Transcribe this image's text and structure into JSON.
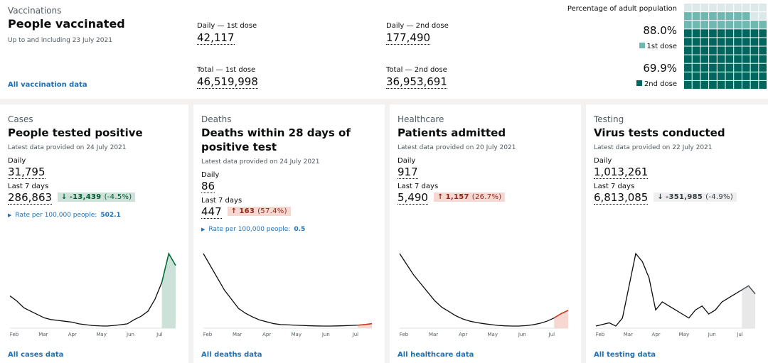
{
  "vaccinations": {
    "caption": "Vaccinations",
    "title": "People vaccinated",
    "subtitle": "Up to and including 23 July 2021",
    "link": "All vaccination data",
    "metrics": [
      {
        "label": "Daily — 1st dose",
        "value": "42,117"
      },
      {
        "label": "Total — 1st dose",
        "value": "46,519,998"
      },
      {
        "label": "Daily — 2nd dose",
        "value": "177,490"
      },
      {
        "label": "Total — 2nd dose",
        "value": "36,953,691"
      }
    ],
    "waffle": {
      "type": "waffle",
      "title": "Percentage of adult population",
      "empty_color": "#dde9e8",
      "series": [
        {
          "name": "1st dose",
          "color": "#6fb8b1",
          "value": 88.0,
          "value_label": "88.0%"
        },
        {
          "name": "2nd dose",
          "color": "#00665e",
          "value": 69.9,
          "value_label": "69.9%"
        }
      ]
    }
  },
  "cards": [
    {
      "caption": "Cases",
      "title": "People tested positive",
      "updated": "Latest data provided on 24 July 2021",
      "daily_label": "Daily",
      "daily": "31,795",
      "week_label": "Last 7 days",
      "week": "286,863",
      "change": {
        "value": "-13,439",
        "percent": "(-4.5%)",
        "direction": "down",
        "tone": "good"
      },
      "rate": {
        "label": "Rate per 100,000 people:",
        "value": "502.1"
      },
      "chart": {
        "type": "line",
        "line_color": "#0b0c0c",
        "highlight_color": "#00703c",
        "shade_color": "#cce2d8",
        "categories": [
          "Feb",
          "Mar",
          "Apr",
          "May",
          "Jun",
          "Jul"
        ],
        "values": [
          20000,
          17000,
          13000,
          11000,
          9000,
          7000,
          6000,
          5500,
          5000,
          4500,
          3500,
          3000,
          2500,
          2300,
          2200,
          2500,
          3000,
          3500,
          6000,
          8000,
          11000,
          18000,
          28000,
          45000,
          38000
        ]
      },
      "link": "All cases data"
    },
    {
      "caption": "Deaths",
      "title": "Deaths within 28 days of positive test",
      "updated": "Latest data provided on 24 July 2021",
      "daily_label": "Daily",
      "daily": "86",
      "week_label": "Last 7 days",
      "week": "447",
      "change": {
        "value": "163",
        "percent": "(57.4%)",
        "direction": "up",
        "tone": "bad"
      },
      "rate": {
        "label": "Rate per 100,000 people:",
        "value": "0.5"
      },
      "chart": {
        "type": "line",
        "line_color": "#0b0c0c",
        "highlight_color": "#d4351c",
        "shade_color": "#f6d7d2",
        "categories": [
          "Feb",
          "Mar",
          "Apr",
          "May",
          "Jun",
          "Jul"
        ],
        "values": [
          1200,
          1000,
          800,
          600,
          450,
          300,
          220,
          160,
          110,
          80,
          50,
          35,
          30,
          25,
          20,
          15,
          12,
          10,
          10,
          12,
          15,
          20,
          25,
          35,
          50
        ]
      },
      "link": "All deaths data"
    },
    {
      "caption": "Healthcare",
      "title": "Patients admitted",
      "updated": "Latest data provided on 20 July 2021",
      "daily_label": "Daily",
      "daily": "917",
      "week_label": "Last 7 days",
      "week": "5,490",
      "change": {
        "value": "1,157",
        "percent": "(26.7%)",
        "direction": "up",
        "tone": "bad"
      },
      "chart": {
        "type": "line",
        "line_color": "#0b0c0c",
        "highlight_color": "#d4351c",
        "shade_color": "#f6d7d2",
        "categories": [
          "Feb",
          "Mar",
          "Apr",
          "May",
          "Jun",
          "Jul"
        ],
        "values": [
          3500,
          3000,
          2500,
          2100,
          1700,
          1300,
          1000,
          800,
          600,
          450,
          350,
          280,
          230,
          190,
          150,
          130,
          120,
          120,
          140,
          180,
          250,
          350,
          500,
          700,
          850
        ]
      },
      "link": "All healthcare data"
    },
    {
      "caption": "Testing",
      "title": "Virus tests conducted",
      "updated": "Latest data provided on 22 July 2021",
      "daily_label": "Daily",
      "daily": "1,013,261",
      "week_label": "Last 7 days",
      "week": "6,813,085",
      "change": {
        "value": "-351,985",
        "percent": "(-4.9%)",
        "direction": "down",
        "tone": "neutral"
      },
      "chart": {
        "type": "line",
        "line_color": "#0b0c0c",
        "highlight_color": "#505a5f",
        "shade_color": "#e8e8e8",
        "categories": [
          "Feb",
          "Mar",
          "Apr",
          "May",
          "Jun",
          "Jul"
        ],
        "values": [
          700000,
          720000,
          740000,
          700000,
          800000,
          1200000,
          1600000,
          1500000,
          1300000,
          900000,
          1000000,
          950000,
          900000,
          850000,
          800000,
          900000,
          950000,
          850000,
          900000,
          1000000,
          1050000,
          1100000,
          1150000,
          1200000,
          1100000
        ]
      },
      "link": "All testing data"
    }
  ]
}
